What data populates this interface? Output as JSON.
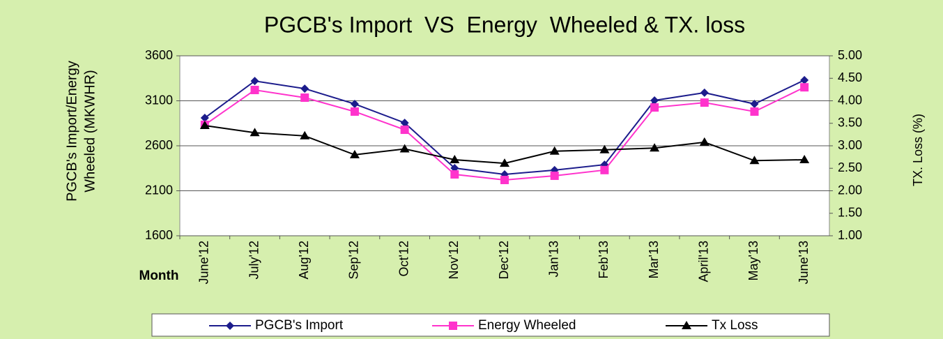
{
  "chart_data": {
    "type": "line",
    "title": "PGCB's Import  VS  Energy  Wheeled & TX. loss",
    "ylabel": [
      "PGCB's Import/Energy",
      "Wheeled (MKWHR)"
    ],
    "y2label": "TX. Loss (%)",
    "xlabel": "Month",
    "categories": [
      "June'12",
      "July'12",
      "Aug'12",
      "Sep'12",
      "Oct'12",
      "Nov'12",
      "Dec'12",
      "Jan'13",
      "Feb'13",
      "Mar'13",
      "April'13",
      "May'13",
      "June'13"
    ],
    "series": [
      {
        "name": "PGCB's Import",
        "color": "#1c1c8c",
        "marker": "diamond",
        "values": [
          2910,
          3320,
          3235,
          3065,
          2855,
          2352,
          2282,
          2330,
          2390,
          3104,
          3190,
          3065,
          3330
        ]
      },
      {
        "name": "Energy Wheeled",
        "color": "#ff33cc",
        "marker": "square",
        "values": [
          2833,
          3220,
          3135,
          2980,
          2778,
          2282,
          2220,
          2267,
          2330,
          3026,
          3080,
          2980,
          3250
        ]
      },
      {
        "name": "Tx Loss",
        "color": "#000000",
        "marker": "triangle",
        "axis": "y2",
        "values": [
          3.45,
          3.29,
          3.22,
          2.8,
          2.93,
          2.69,
          2.61,
          2.88,
          2.91,
          2.95,
          3.08,
          2.67,
          2.69
        ]
      }
    ],
    "ylim": [
      1600,
      3600
    ],
    "yticks": [
      1600,
      2100,
      2600,
      3100,
      3600
    ],
    "y2lim": [
      1,
      5
    ],
    "y2ticks": [
      {
        "value": 1,
        "label": "1.00"
      },
      {
        "value": 1.5,
        "label": "1.50"
      },
      {
        "value": 2,
        "label": "2.00"
      },
      {
        "value": 2.5,
        "label": "2.50"
      },
      {
        "value": 3,
        "label": "3.00"
      },
      {
        "value": 3.5,
        "label": "3.50"
      },
      {
        "value": 4,
        "label": "4.00"
      },
      {
        "value": 4.5,
        "label": "4.50"
      },
      {
        "value": 5,
        "label": "5.00"
      }
    ],
    "grid": true,
    "legend": "bottom"
  }
}
